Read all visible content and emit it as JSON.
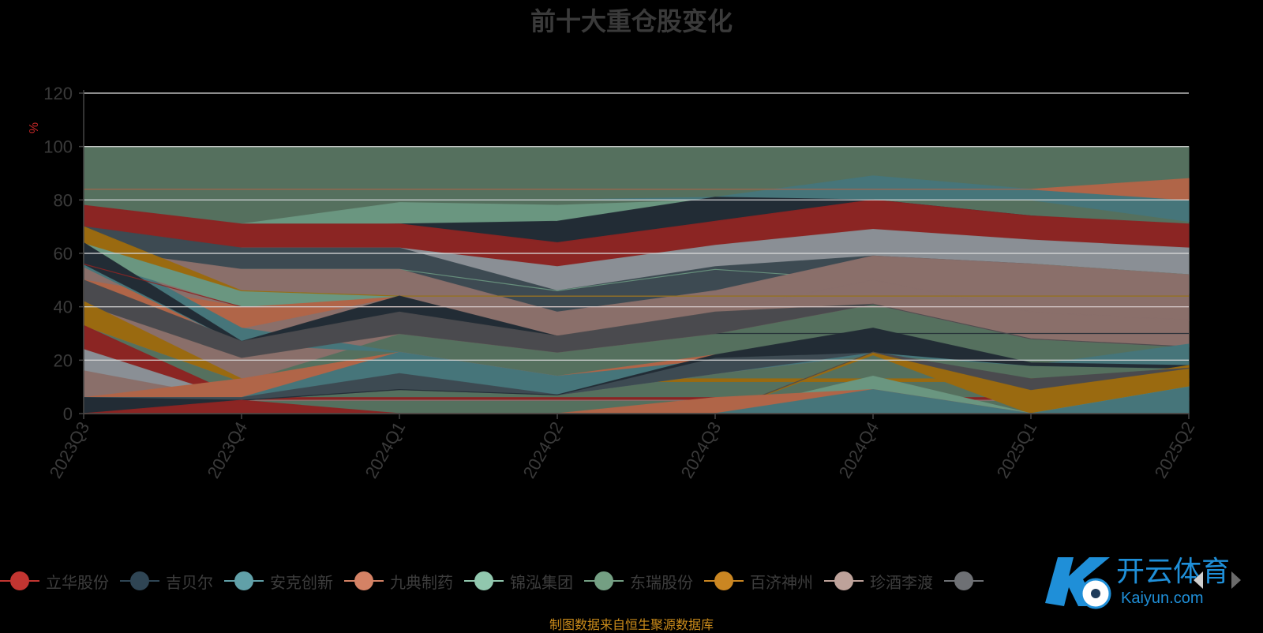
{
  "chart_data": {
    "type": "area",
    "title": "前十大重仓股变化",
    "ylabel": "%",
    "ylim": [
      0,
      120
    ],
    "yticks": [
      0,
      20,
      40,
      60,
      80,
      100,
      120
    ],
    "categories": [
      "2023Q3",
      "2023Q4",
      "2024Q1",
      "2024Q2",
      "2024Q3",
      "2024Q4",
      "2025Q1",
      "2025Q2"
    ],
    "bands": [
      {
        "color": "#55705e",
        "lower": [
          0,
          0,
          0,
          0,
          0,
          0,
          0,
          0
        ],
        "upper": [
          100,
          100,
          100,
          100,
          100,
          100,
          100,
          100
        ]
      },
      {
        "color": "#6a9680",
        "lower": [
          70,
          70,
          70,
          72,
          80,
          80,
          80,
          80
        ],
        "upper": [
          70,
          71,
          79,
          78,
          80,
          80,
          80,
          80
        ]
      },
      {
        "color": "#46757a",
        "lower": [
          80,
          80,
          80,
          80,
          80,
          80,
          80,
          72
        ],
        "upper": [
          80,
          80,
          80,
          80,
          81,
          89,
          84,
          80
        ]
      },
      {
        "color": "#b06548",
        "lower": [
          84,
          84,
          84,
          84,
          84,
          84,
          84,
          80
        ],
        "upper": [
          84,
          84,
          84,
          84,
          84,
          84,
          84,
          88
        ]
      },
      {
        "color": "#222c35",
        "lower": [
          70,
          70,
          70,
          64,
          72,
          80,
          74,
          70
        ],
        "upper": [
          70,
          70,
          71,
          72,
          81,
          80,
          74,
          70
        ]
      },
      {
        "color": "#8b2523",
        "lower": [
          70,
          62,
          62,
          55,
          62,
          69,
          65,
          62
        ],
        "upper": [
          78,
          71,
          71,
          64,
          72,
          80,
          74,
          71
        ]
      },
      {
        "color": "#8a8f95",
        "lower": [
          62,
          54,
          54,
          46,
          54,
          59,
          56,
          52
        ],
        "upper": [
          62,
          62,
          62,
          55,
          63,
          69,
          65,
          62
        ]
      },
      {
        "color": "#3d4a52",
        "lower": [
          62,
          54,
          54,
          38,
          46,
          50,
          48,
          45
        ],
        "upper": [
          70,
          62,
          62,
          46,
          55,
          59,
          56,
          52
        ]
      },
      {
        "color": "#6a9680",
        "lower": [
          56,
          54,
          54,
          46,
          54,
          50,
          48,
          45
        ],
        "upper": [
          56,
          54,
          54,
          46,
          54,
          50,
          56,
          52
        ]
      },
      {
        "color": "#3d4a52",
        "lower": [
          50,
          46,
          44,
          38,
          46,
          50,
          38,
          35
        ],
        "upper": [
          50,
          46,
          44,
          38,
          46,
          50,
          48,
          45
        ]
      },
      {
        "color": "#8a6f6a",
        "lower": [
          49,
          46,
          38,
          29,
          38,
          50,
          38,
          35
        ],
        "upper": [
          62,
          54,
          54,
          38,
          46,
          59,
          56,
          52
        ]
      },
      {
        "color": "#8a6f6a",
        "lower": [
          33,
          12,
          30,
          23,
          30,
          41,
          28,
          25
        ],
        "upper": [
          49,
          46,
          38,
          29,
          38,
          50,
          38,
          35
        ]
      },
      {
        "color": "#b06548",
        "lower": [
          42,
          32,
          44,
          44,
          44,
          44,
          44,
          44
        ],
        "upper": [
          50,
          40,
          44,
          44,
          44,
          44,
          44,
          44
        ]
      },
      {
        "color": "#46757a",
        "lower": [
          55,
          26,
          23,
          14,
          20,
          20,
          20,
          20
        ],
        "upper": [
          64,
          32,
          23,
          14,
          20,
          20,
          20,
          20
        ]
      },
      {
        "color": "#6a9680",
        "lower": [
          58,
          40,
          44,
          44,
          44,
          44,
          44,
          44
        ],
        "upper": [
          64,
          46,
          44,
          44,
          44,
          44,
          44,
          44
        ]
      },
      {
        "color": "#9a6a10",
        "lower": [
          64,
          46,
          44,
          44,
          44,
          44,
          44,
          44
        ],
        "upper": [
          70,
          46,
          44,
          44,
          44,
          44,
          44,
          44
        ]
      },
      {
        "color": "#222c35",
        "lower": [
          56,
          26,
          38,
          29,
          30,
          30,
          30,
          30
        ],
        "upper": [
          64,
          27,
          44,
          29,
          30,
          30,
          30,
          30
        ]
      },
      {
        "color": "#4a4a4e",
        "lower": [
          41,
          21,
          30,
          23,
          30,
          41,
          28,
          25
        ],
        "upper": [
          50,
          27,
          38,
          29,
          38,
          41,
          28,
          25
        ]
      },
      {
        "color": "#8b2523",
        "lower": [
          56,
          40,
          40,
          40,
          40,
          40,
          40,
          40
        ],
        "upper": [
          56,
          40,
          40,
          40,
          40,
          40,
          40,
          40
        ]
      },
      {
        "color": "#9a6a10",
        "lower": [
          33,
          12,
          12,
          12,
          12,
          12,
          12,
          12
        ],
        "upper": [
          42,
          13,
          13,
          13,
          13,
          13,
          13,
          13
        ]
      },
      {
        "color": "#8b2523",
        "lower": [
          24,
          5,
          5,
          5,
          5,
          5,
          5,
          5
        ],
        "upper": [
          33,
          6,
          6,
          6,
          6,
          6,
          6,
          6
        ]
      },
      {
        "color": "#8a8f95",
        "lower": [
          16,
          5,
          5,
          5,
          5,
          5,
          5,
          5
        ],
        "upper": [
          24,
          5,
          5,
          5,
          5,
          5,
          5,
          5
        ]
      },
      {
        "color": "#8a6f6a",
        "lower": [
          6,
          5,
          5,
          5,
          5,
          5,
          5,
          5
        ],
        "upper": [
          16,
          5,
          5,
          5,
          5,
          5,
          5,
          5
        ]
      },
      {
        "color": "#b06548",
        "lower": [
          6,
          6,
          15,
          7,
          15,
          22,
          12,
          17
        ],
        "upper": [
          6,
          13,
          23,
          14,
          22,
          22,
          12,
          17
        ]
      },
      {
        "color": "#46757a",
        "lower": [
          6,
          6,
          15,
          7,
          15,
          22,
          18,
          17
        ],
        "upper": [
          6,
          6,
          23,
          14,
          20,
          23,
          18,
          26
        ]
      },
      {
        "color": "#3d4a52",
        "lower": [
          6,
          5,
          9,
          7,
          15,
          23,
          12,
          17
        ],
        "upper": [
          6,
          6,
          15,
          7,
          21,
          23,
          12,
          17
        ]
      },
      {
        "color": "#222c35",
        "lower": [
          0,
          5,
          9,
          7,
          21,
          23,
          18,
          17
        ],
        "upper": [
          6,
          5,
          9,
          7,
          22,
          32,
          19,
          18
        ]
      },
      {
        "color": "#9a6a10",
        "lower": [
          0,
          0,
          0,
          0,
          0,
          22,
          0,
          10
        ],
        "upper": [
          0,
          0,
          0,
          0,
          0,
          23,
          9,
          18
        ]
      },
      {
        "color": "#4a4a4e",
        "lower": [
          0,
          0,
          0,
          0,
          0,
          23,
          9,
          17
        ],
        "upper": [
          0,
          0,
          0,
          0,
          0,
          23,
          13,
          17
        ]
      },
      {
        "color": "#6a9680",
        "lower": [
          0,
          0,
          0,
          0,
          0,
          9,
          0,
          10
        ],
        "upper": [
          0,
          0,
          0,
          0,
          0,
          14,
          0,
          10
        ]
      },
      {
        "color": "#b06548",
        "lower": [
          0,
          0,
          0,
          0,
          0,
          0,
          0,
          0
        ],
        "upper": [
          0,
          0,
          0,
          0,
          6,
          9,
          0,
          0
        ]
      },
      {
        "color": "#46757a",
        "lower": [
          0,
          0,
          0,
          0,
          0,
          0,
          0,
          0
        ],
        "upper": [
          0,
          0,
          0,
          0,
          0,
          9,
          0,
          10
        ]
      },
      {
        "color": "#8b2523",
        "lower": [
          0,
          0,
          0,
          0,
          0,
          0,
          0,
          0
        ],
        "upper": [
          0,
          5,
          0,
          0,
          0,
          0,
          0,
          0
        ]
      }
    ],
    "legend": {
      "placement": "bottom",
      "items": [
        {
          "name": "立华股份",
          "color": "#c23531"
        },
        {
          "name": "吉贝尔",
          "color": "#2f4554"
        },
        {
          "name": "安克创新",
          "color": "#61a0a8"
        },
        {
          "name": "九典制药",
          "color": "#d48265"
        },
        {
          "name": "锦泓集团",
          "color": "#91c7ae"
        },
        {
          "name": "东瑞股份",
          "color": "#749f83"
        },
        {
          "name": "百济神州",
          "color": "#ca8622"
        },
        {
          "name": "珍酒李渡",
          "color": "#bda29a"
        },
        {
          "name": "",
          "color": "#6e7074"
        }
      ]
    },
    "source": "制图数据来自恒生聚源数据库"
  },
  "watermark": {
    "text": "开云体育",
    "subtext": "Kaiyun.com"
  }
}
